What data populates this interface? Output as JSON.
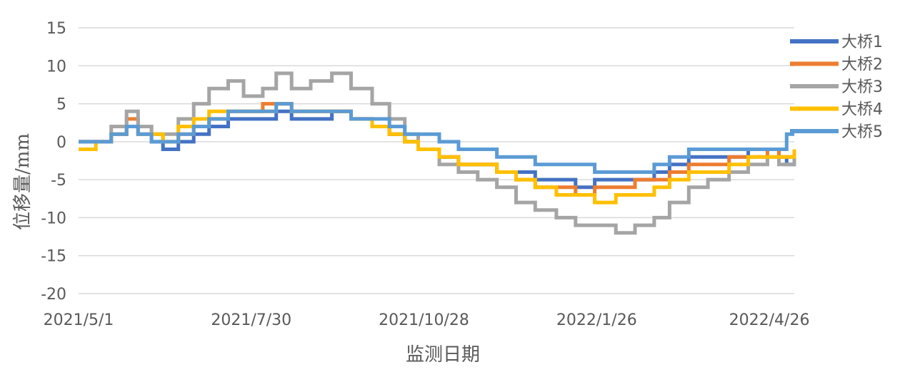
{
  "chart_data": {
    "type": "line",
    "xlabel": "监测日期",
    "ylabel": "位移量/mm",
    "ylim": [
      -20,
      15
    ],
    "yticks": [
      15,
      10,
      5,
      0,
      -5,
      -10,
      -15,
      -20
    ],
    "ytick_labels": [
      "15",
      "10",
      "5",
      "0",
      "-5",
      "-10",
      "-15",
      "-20"
    ],
    "xlim": [
      "2021-05-01",
      "2022-05-09"
    ],
    "xticks": [
      "2021-05-01",
      "2021-07-30",
      "2021-10-28",
      "2022-01-26",
      "2022-04-26"
    ],
    "xtick_labels": [
      "2021/5/1",
      "2021/7/30",
      "2021/10/28",
      "2022/1/26",
      "2022/4/26"
    ],
    "grid": true,
    "legend_position": "right",
    "series": [
      {
        "name": "大桥1",
        "color": "#4472C4",
        "points": [
          [
            "2021-05-01",
            0
          ],
          [
            "2021-05-10",
            0
          ],
          [
            "2021-05-18",
            1
          ],
          [
            "2021-05-26",
            2
          ],
          [
            "2021-06-01",
            1
          ],
          [
            "2021-06-08",
            0
          ],
          [
            "2021-06-14",
            -1
          ],
          [
            "2021-06-22",
            0
          ],
          [
            "2021-06-30",
            1
          ],
          [
            "2021-07-08",
            2
          ],
          [
            "2021-07-18",
            3
          ],
          [
            "2021-07-26",
            3
          ],
          [
            "2021-08-05",
            3
          ],
          [
            "2021-08-12",
            4
          ],
          [
            "2021-08-20",
            3
          ],
          [
            "2021-08-30",
            3
          ],
          [
            "2021-09-10",
            4
          ],
          [
            "2021-09-20",
            3
          ],
          [
            "2021-10-01",
            2
          ],
          [
            "2021-10-10",
            1
          ],
          [
            "2021-10-18",
            0
          ],
          [
            "2021-10-25",
            -1
          ],
          [
            "2021-11-05",
            -2
          ],
          [
            "2021-11-15",
            -3
          ],
          [
            "2021-11-25",
            -3
          ],
          [
            "2021-12-05",
            -4
          ],
          [
            "2021-12-15",
            -4
          ],
          [
            "2021-12-25",
            -5
          ],
          [
            "2022-01-05",
            -5
          ],
          [
            "2022-01-15",
            -6
          ],
          [
            "2022-01-25",
            -5
          ],
          [
            "2022-02-05",
            -5
          ],
          [
            "2022-02-15",
            -5
          ],
          [
            "2022-02-25",
            -4
          ],
          [
            "2022-03-05",
            -3
          ],
          [
            "2022-03-15",
            -2
          ],
          [
            "2022-03-25",
            -2
          ],
          [
            "2022-04-05",
            -2
          ],
          [
            "2022-04-15",
            -1
          ],
          [
            "2022-04-25",
            -1
          ],
          [
            "2022-05-01",
            -2
          ],
          [
            "2022-05-05",
            -3
          ],
          [
            "2022-05-09",
            -1
          ]
        ]
      },
      {
        "name": "大桥2",
        "color": "#ED7D31",
        "points": [
          [
            "2021-05-01",
            0
          ],
          [
            "2021-05-10",
            0
          ],
          [
            "2021-05-18",
            1
          ],
          [
            "2021-05-26",
            3
          ],
          [
            "2021-06-01",
            2
          ],
          [
            "2021-06-08",
            1
          ],
          [
            "2021-06-14",
            0
          ],
          [
            "2021-06-22",
            1
          ],
          [
            "2021-06-30",
            2
          ],
          [
            "2021-07-08",
            3
          ],
          [
            "2021-07-18",
            4
          ],
          [
            "2021-07-26",
            4
          ],
          [
            "2021-08-05",
            5
          ],
          [
            "2021-08-12",
            5
          ],
          [
            "2021-08-20",
            4
          ],
          [
            "2021-08-30",
            4
          ],
          [
            "2021-09-10",
            4
          ],
          [
            "2021-09-20",
            3
          ],
          [
            "2021-10-01",
            2
          ],
          [
            "2021-10-10",
            1
          ],
          [
            "2021-10-18",
            0
          ],
          [
            "2021-10-25",
            -1
          ],
          [
            "2021-11-05",
            -2
          ],
          [
            "2021-11-15",
            -3
          ],
          [
            "2021-11-25",
            -3
          ],
          [
            "2021-12-05",
            -4
          ],
          [
            "2021-12-15",
            -5
          ],
          [
            "2021-12-25",
            -6
          ],
          [
            "2022-01-05",
            -6
          ],
          [
            "2022-01-15",
            -7
          ],
          [
            "2022-01-25",
            -6
          ],
          [
            "2022-02-05",
            -6
          ],
          [
            "2022-02-15",
            -5
          ],
          [
            "2022-02-25",
            -5
          ],
          [
            "2022-03-05",
            -4
          ],
          [
            "2022-03-15",
            -3
          ],
          [
            "2022-03-25",
            -3
          ],
          [
            "2022-04-05",
            -2
          ],
          [
            "2022-04-15",
            -2
          ],
          [
            "2022-04-25",
            -1
          ],
          [
            "2022-05-01",
            -2
          ],
          [
            "2022-05-05",
            -2
          ],
          [
            "2022-05-09",
            -1
          ]
        ]
      },
      {
        "name": "大桥3",
        "color": "#A5A5A5",
        "points": [
          [
            "2021-05-01",
            0
          ],
          [
            "2021-05-10",
            0
          ],
          [
            "2021-05-18",
            2
          ],
          [
            "2021-05-26",
            4
          ],
          [
            "2021-06-01",
            2
          ],
          [
            "2021-06-08",
            1
          ],
          [
            "2021-06-14",
            1
          ],
          [
            "2021-06-22",
            3
          ],
          [
            "2021-06-30",
            5
          ],
          [
            "2021-07-08",
            7
          ],
          [
            "2021-07-18",
            8
          ],
          [
            "2021-07-26",
            6
          ],
          [
            "2021-08-05",
            7
          ],
          [
            "2021-08-12",
            9
          ],
          [
            "2021-08-20",
            7
          ],
          [
            "2021-08-30",
            8
          ],
          [
            "2021-09-10",
            9
          ],
          [
            "2021-09-20",
            7
          ],
          [
            "2021-10-01",
            5
          ],
          [
            "2021-10-10",
            3
          ],
          [
            "2021-10-18",
            1
          ],
          [
            "2021-10-25",
            -1
          ],
          [
            "2021-11-05",
            -3
          ],
          [
            "2021-11-15",
            -4
          ],
          [
            "2021-11-25",
            -5
          ],
          [
            "2021-12-05",
            -6
          ],
          [
            "2021-12-15",
            -8
          ],
          [
            "2021-12-25",
            -9
          ],
          [
            "2022-01-05",
            -10
          ],
          [
            "2022-01-15",
            -11
          ],
          [
            "2022-01-25",
            -11
          ],
          [
            "2022-02-05",
            -12
          ],
          [
            "2022-02-15",
            -11
          ],
          [
            "2022-02-25",
            -10
          ],
          [
            "2022-03-05",
            -8
          ],
          [
            "2022-03-15",
            -6
          ],
          [
            "2022-03-25",
            -5
          ],
          [
            "2022-04-05",
            -4
          ],
          [
            "2022-04-15",
            -3
          ],
          [
            "2022-04-25",
            -2
          ],
          [
            "2022-05-01",
            -3
          ],
          [
            "2022-05-05",
            -3
          ],
          [
            "2022-05-09",
            -1
          ]
        ]
      },
      {
        "name": "大桥4",
        "color": "#FFC000",
        "points": [
          [
            "2021-05-01",
            -1
          ],
          [
            "2021-05-10",
            0
          ],
          [
            "2021-05-18",
            1
          ],
          [
            "2021-05-26",
            2
          ],
          [
            "2021-06-01",
            1
          ],
          [
            "2021-06-08",
            1
          ],
          [
            "2021-06-14",
            0
          ],
          [
            "2021-06-22",
            2
          ],
          [
            "2021-06-30",
            3
          ],
          [
            "2021-07-08",
            4
          ],
          [
            "2021-07-18",
            4
          ],
          [
            "2021-07-26",
            4
          ],
          [
            "2021-08-05",
            4
          ],
          [
            "2021-08-12",
            5
          ],
          [
            "2021-08-20",
            4
          ],
          [
            "2021-08-30",
            4
          ],
          [
            "2021-09-10",
            4
          ],
          [
            "2021-09-20",
            3
          ],
          [
            "2021-10-01",
            2
          ],
          [
            "2021-10-10",
            1
          ],
          [
            "2021-10-18",
            0
          ],
          [
            "2021-10-25",
            -1
          ],
          [
            "2021-11-05",
            -2
          ],
          [
            "2021-11-15",
            -3
          ],
          [
            "2021-11-25",
            -3
          ],
          [
            "2021-12-05",
            -4
          ],
          [
            "2021-12-15",
            -5
          ],
          [
            "2021-12-25",
            -6
          ],
          [
            "2022-01-05",
            -7
          ],
          [
            "2022-01-15",
            -7
          ],
          [
            "2022-01-25",
            -8
          ],
          [
            "2022-02-05",
            -7
          ],
          [
            "2022-02-15",
            -7
          ],
          [
            "2022-02-25",
            -6
          ],
          [
            "2022-03-05",
            -5
          ],
          [
            "2022-03-15",
            -4
          ],
          [
            "2022-03-25",
            -4
          ],
          [
            "2022-04-05",
            -3
          ],
          [
            "2022-04-15",
            -2
          ],
          [
            "2022-04-25",
            -2
          ],
          [
            "2022-05-01",
            -2
          ],
          [
            "2022-05-05",
            -2
          ],
          [
            "2022-05-09",
            -1
          ]
        ]
      },
      {
        "name": "大桥5",
        "color": "#5B9BD5",
        "points": [
          [
            "2021-05-01",
            0
          ],
          [
            "2021-05-10",
            0
          ],
          [
            "2021-05-18",
            1
          ],
          [
            "2021-05-26",
            2
          ],
          [
            "2021-06-01",
            1
          ],
          [
            "2021-06-08",
            0
          ],
          [
            "2021-06-14",
            0
          ],
          [
            "2021-06-22",
            1
          ],
          [
            "2021-06-30",
            2
          ],
          [
            "2021-07-08",
            3
          ],
          [
            "2021-07-18",
            4
          ],
          [
            "2021-07-26",
            4
          ],
          [
            "2021-08-05",
            4
          ],
          [
            "2021-08-12",
            5
          ],
          [
            "2021-08-20",
            4
          ],
          [
            "2021-08-30",
            4
          ],
          [
            "2021-09-10",
            4
          ],
          [
            "2021-09-20",
            3
          ],
          [
            "2021-10-01",
            3
          ],
          [
            "2021-10-10",
            2
          ],
          [
            "2021-10-18",
            1
          ],
          [
            "2021-10-25",
            1
          ],
          [
            "2021-11-05",
            0
          ],
          [
            "2021-11-15",
            -1
          ],
          [
            "2021-11-25",
            -1
          ],
          [
            "2021-12-05",
            -2
          ],
          [
            "2021-12-15",
            -2
          ],
          [
            "2021-12-25",
            -3
          ],
          [
            "2022-01-05",
            -3
          ],
          [
            "2022-01-15",
            -3
          ],
          [
            "2022-01-25",
            -4
          ],
          [
            "2022-02-05",
            -4
          ],
          [
            "2022-02-15",
            -4
          ],
          [
            "2022-02-25",
            -3
          ],
          [
            "2022-03-05",
            -2
          ],
          [
            "2022-03-15",
            -1
          ],
          [
            "2022-03-25",
            -1
          ],
          [
            "2022-04-05",
            -1
          ],
          [
            "2022-04-15",
            -1
          ],
          [
            "2022-04-25",
            -1
          ],
          [
            "2022-05-01",
            -1
          ],
          [
            "2022-05-05",
            1
          ],
          [
            "2022-05-09",
            1
          ]
        ]
      }
    ]
  }
}
